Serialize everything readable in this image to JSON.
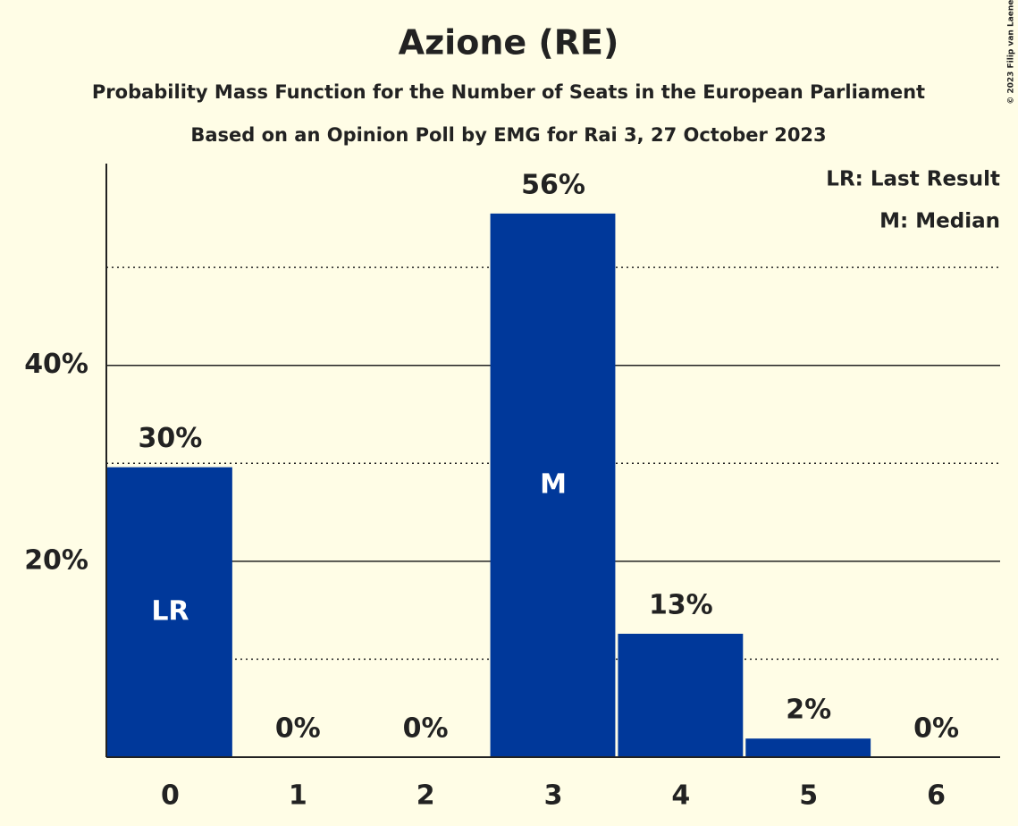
{
  "chart_data": {
    "type": "bar",
    "title": "Azione (RE)",
    "subtitle": "Probability Mass Function for the Number of Seats in the European Parliament",
    "subtitle2": "Based on an Opinion Poll by EMG for Rai 3, 27 October 2023",
    "copyright": "© 2023 Filip van Laenen",
    "categories": [
      "0",
      "1",
      "2",
      "3",
      "4",
      "5",
      "6"
    ],
    "values": [
      29.6,
      0,
      0,
      55.5,
      12.6,
      1.9,
      0
    ],
    "value_labels": [
      "30%",
      "0%",
      "0%",
      "56%",
      "13%",
      "2%",
      "0%"
    ],
    "bar_labels": [
      "LR",
      null,
      null,
      "M",
      null,
      null,
      null
    ],
    "legend": [
      "LR: Last Result",
      "M: Median"
    ],
    "color": "#00389a",
    "ylim": [
      0,
      60.6
    ],
    "yticks": [
      {
        "value": 20,
        "label": "20%"
      },
      {
        "value": 40,
        "label": "40%"
      }
    ],
    "minor_gridlines": [
      10,
      30,
      50
    ],
    "grid": true
  }
}
